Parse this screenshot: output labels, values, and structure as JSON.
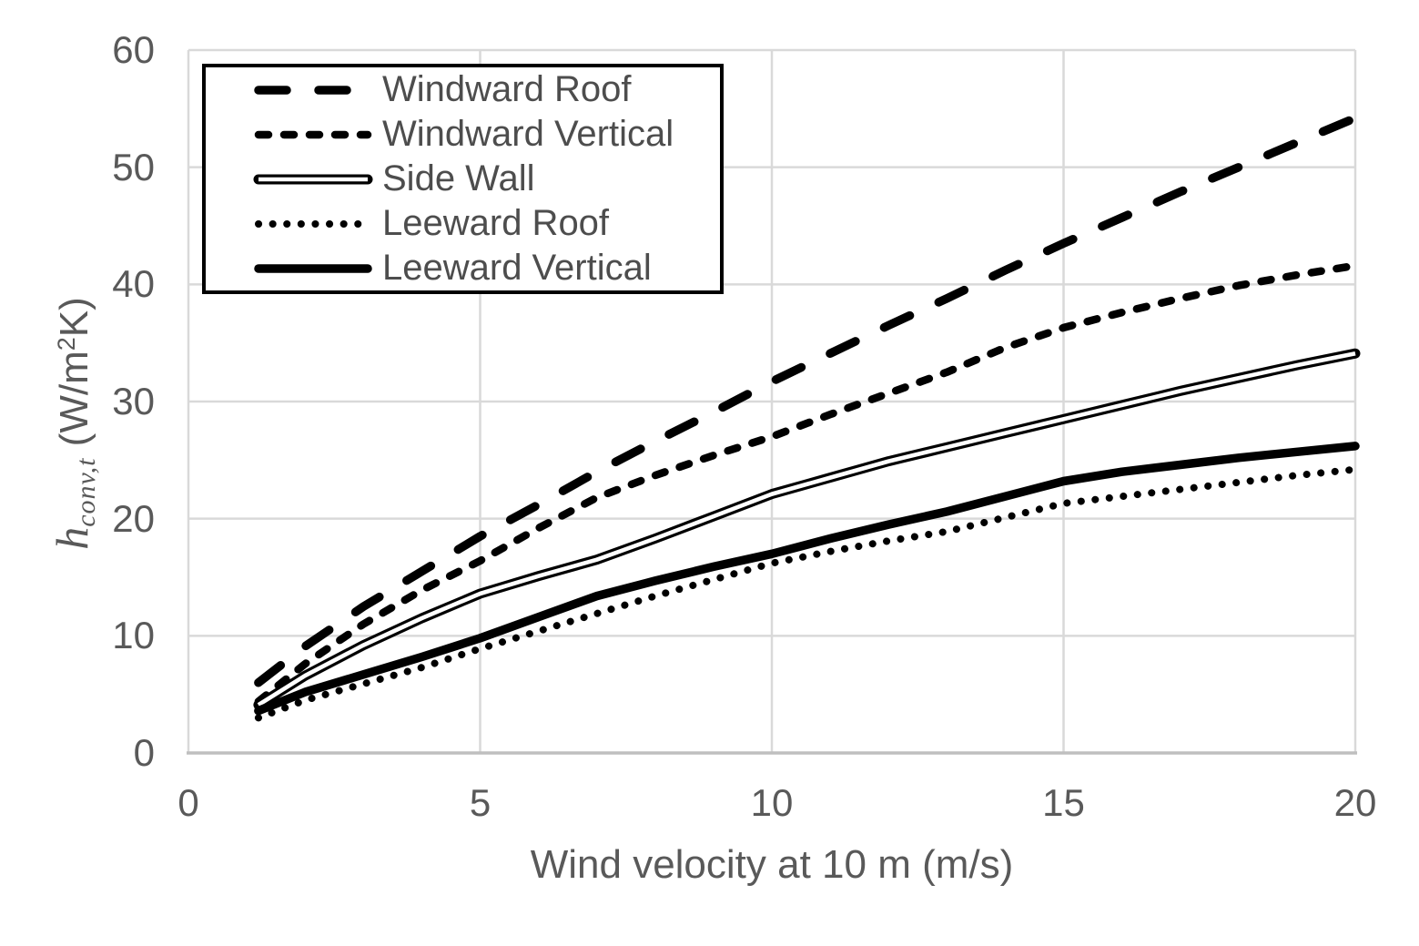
{
  "colors": {
    "background": "#ffffff",
    "series": "#000000",
    "gridline": "#d9d9d9",
    "axis_line": "#bfbfbf",
    "axis_text": "#595959",
    "legend_text": "#4d4d4d",
    "legend_border": "#000000"
  },
  "chart_data": {
    "type": "line",
    "title": "",
    "xlabel": "Wind velocity at 10 m (m/s)",
    "ylabel": "h_conv,t (W/m2K)",
    "ylabel_parts": {
      "symbol": "h",
      "subscript": "conv,t",
      "unit_pre": " (W/m",
      "unit_sup": "2",
      "unit_post": "K)"
    },
    "xlim": [
      0,
      20
    ],
    "ylim": [
      0,
      60
    ],
    "x_ticks": [
      0,
      5,
      10,
      15,
      20
    ],
    "y_ticks": [
      0,
      10,
      20,
      30,
      40,
      50,
      60
    ],
    "grid": true,
    "legend_position": "top-left",
    "x": [
      1.2,
      2,
      3,
      4,
      5,
      6,
      7,
      8,
      9,
      10,
      11,
      12,
      13,
      14,
      15,
      16,
      17,
      18,
      19,
      20
    ],
    "series": [
      {
        "name": "Windward Roof",
        "style": "long-dash",
        "color": "#000000",
        "values": [
          6.0,
          9.1,
          12.5,
          15.5,
          18.5,
          21.2,
          24.0,
          26.6,
          29.1,
          31.7,
          34.1,
          36.5,
          38.8,
          41.2,
          43.5,
          45.7,
          47.9,
          50.0,
          52.1,
          54.2
        ]
      },
      {
        "name": "Windward Vertical",
        "style": "short-dash",
        "color": "#000000",
        "values": [
          4.4,
          7.6,
          11.0,
          13.9,
          16.4,
          19.2,
          21.8,
          23.7,
          25.4,
          27.0,
          28.9,
          30.7,
          32.5,
          34.6,
          36.3,
          37.6,
          38.8,
          39.9,
          40.8,
          41.6
        ]
      },
      {
        "name": "Side Wall",
        "style": "double",
        "color": "#000000",
        "values": [
          4.1,
          6.6,
          9.2,
          11.5,
          13.6,
          15.1,
          16.5,
          18.3,
          20.2,
          22.1,
          23.5,
          24.9,
          26.1,
          27.3,
          28.5,
          29.7,
          30.9,
          32.0,
          33.1,
          34.1
        ]
      },
      {
        "name": "Leeward Roof",
        "style": "dotted",
        "color": "#000000",
        "values": [
          3.0,
          4.5,
          5.9,
          7.3,
          8.9,
          10.4,
          11.9,
          13.4,
          14.8,
          16.2,
          17.2,
          18.1,
          18.9,
          20.1,
          21.3,
          21.9,
          22.5,
          23.1,
          23.7,
          24.2
        ]
      },
      {
        "name": "Leeward Vertical",
        "style": "solid",
        "color": "#000000",
        "values": [
          3.6,
          5.2,
          6.7,
          8.2,
          9.8,
          11.6,
          13.4,
          14.7,
          15.9,
          17.0,
          18.3,
          19.5,
          20.6,
          21.9,
          23.2,
          24.0,
          24.6,
          25.2,
          25.7,
          26.2
        ]
      }
    ]
  }
}
